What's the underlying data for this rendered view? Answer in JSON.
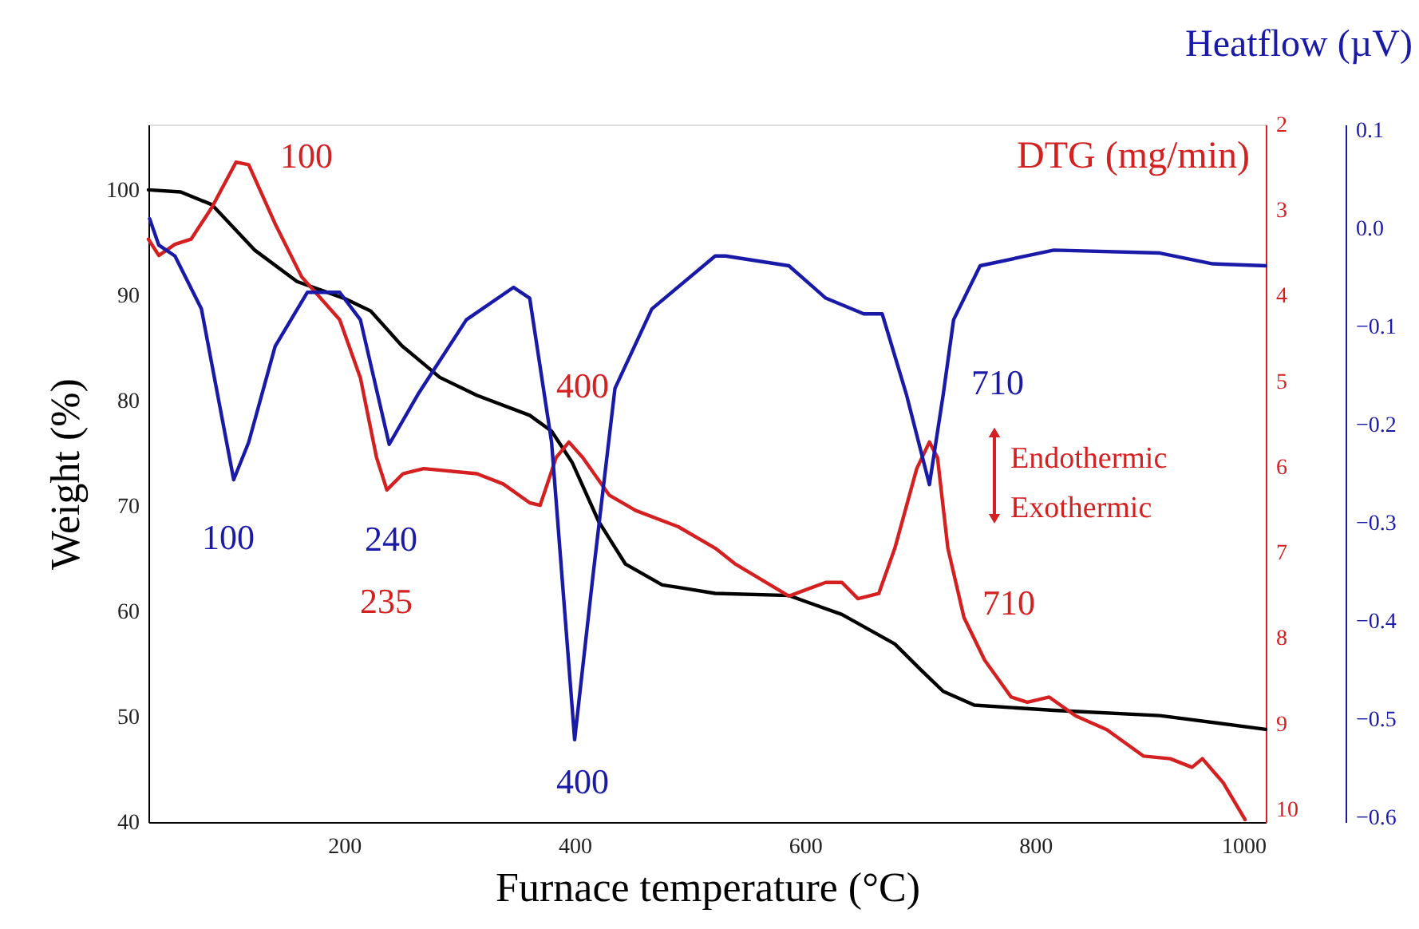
{
  "chart_data": {
    "type": "line",
    "xlabel": "Furnace temperature (°C)",
    "ylabel": "Weight (%)",
    "y2label": "DTG (mg/min)",
    "y3label": "Heatflow (µV)",
    "xlim": [
      30,
      1000
    ],
    "xticks": [
      200,
      400,
      600,
      800,
      1000
    ],
    "ylim": [
      40,
      106.2
    ],
    "yticks": [
      40,
      50,
      60,
      70,
      80,
      90,
      100
    ],
    "y2lim": [
      10.15,
      2
    ],
    "y2ticks": [
      2,
      3,
      4,
      5,
      6,
      7,
      8,
      9,
      10
    ],
    "y3lim": [
      -0.605,
      0.106
    ],
    "y3ticks": [
      {
        "value": 0.1,
        "label": "0.1"
      },
      {
        "value": 0.0,
        "label": "0.0"
      },
      -0.1,
      -0.2,
      -0.3,
      -0.4,
      -0.5,
      -0.6
    ],
    "line_style": "solid",
    "grid": false,
    "series": [
      {
        "color": "#000000",
        "x": [
          30,
          58,
          85,
          122,
          159,
          200,
          223,
          250,
          283,
          315,
          361,
          380,
          398,
          421,
          444,
          476,
          494,
          522,
          586,
          632,
          678,
          701,
          720,
          747,
          816,
          908,
          1000
        ],
        "values": [
          100,
          99.8,
          98.6,
          94.3,
          91.3,
          89.7,
          88.5,
          85.2,
          82.2,
          80.5,
          78.6,
          77.1,
          74.1,
          68.5,
          64.5,
          62.5,
          62.2,
          61.7,
          61.5,
          59.7,
          56.9,
          54.4,
          52.4,
          51.1,
          50.6,
          50.1,
          48.8
        ]
      },
      {
        "color": "#d42020",
        "axis": "y2",
        "x": [
          30,
          39,
          53,
          67,
          85,
          106,
          117,
          140,
          163,
          196,
          214,
          228,
          237,
          251,
          269,
          315,
          338,
          361,
          370,
          384,
          395,
          407,
          430,
          453,
          490,
          522,
          540,
          586,
          618,
          632,
          646,
          664,
          678,
          697,
          708,
          715,
          724,
          738,
          756,
          779,
          793,
          812,
          835,
          862,
          894,
          917,
          936,
          945,
          963,
          982
        ],
        "values": [
          3.34,
          3.53,
          3.4,
          3.34,
          2.97,
          2.44,
          2.47,
          3.16,
          3.78,
          4.28,
          4.96,
          5.89,
          6.27,
          6.08,
          6.02,
          6.08,
          6.2,
          6.42,
          6.45,
          5.89,
          5.71,
          5.89,
          6.33,
          6.51,
          6.7,
          6.95,
          7.14,
          7.51,
          7.35,
          7.35,
          7.54,
          7.48,
          6.95,
          6.02,
          5.71,
          5.89,
          6.95,
          7.76,
          8.26,
          8.69,
          8.75,
          8.69,
          8.91,
          9.07,
          9.38,
          9.41,
          9.51,
          9.41,
          9.69,
          10.12
        ]
      },
      {
        "color": "#1a1aa8",
        "axis": "y3",
        "x": [
          31,
          39,
          53,
          76,
          90,
          104,
          117,
          140,
          168,
          196,
          214,
          239,
          264,
          306,
          347,
          361,
          380,
          400,
          416,
          435,
          467,
          522,
          531,
          586,
          618,
          651,
          667,
          688,
          708,
          720,
          729,
          752,
          816,
          908,
          954,
          1000
        ],
        "values": [
          0.01,
          -0.017,
          -0.028,
          -0.082,
          -0.169,
          -0.256,
          -0.218,
          -0.12,
          -0.065,
          -0.065,
          -0.093,
          -0.22,
          -0.169,
          -0.093,
          -0.06,
          -0.071,
          -0.218,
          -0.521,
          -0.353,
          -0.163,
          -0.082,
          -0.028,
          -0.028,
          -0.038,
          -0.071,
          -0.087,
          -0.087,
          -0.169,
          -0.261,
          -0.169,
          -0.093,
          -0.038,
          -0.022,
          -0.025,
          -0.036,
          -0.038
        ]
      }
    ],
    "annotations": [
      "100",
      "100",
      "240",
      "235",
      "400",
      "400",
      "710",
      "710",
      "Endothermic",
      "Exothermic"
    ]
  }
}
